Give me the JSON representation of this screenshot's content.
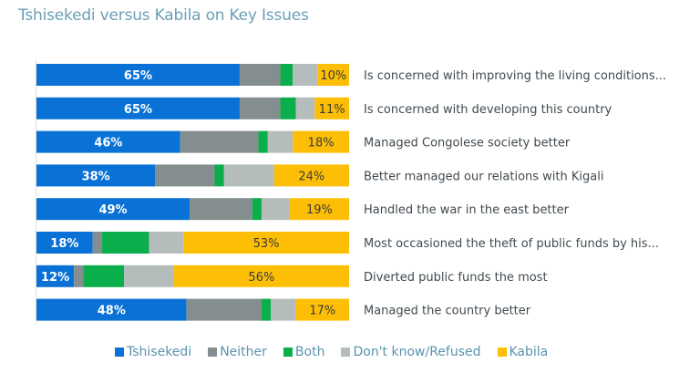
{
  "chart_data": {
    "type": "bar",
    "orientation": "horizontal",
    "stacked": true,
    "title": "Tshisekedi versus Kabila on Key Issues",
    "xlabel": "",
    "ylabel": "",
    "xlim": [
      0,
      100
    ],
    "grid": false,
    "legend_position": "bottom",
    "categories": [
      "Is concerned with improving the living conditions...",
      "Is concerned with developing this country",
      "Managed Congolese society better",
      "Better managed our relations with Kigali",
      "Handled the war in the east better",
      "Most occasioned the theft of public funds by his...",
      "Diverted public funds the most",
      "Managed the country better"
    ],
    "series": [
      {
        "name": "Tshisekedi",
        "color": "#0a72d6",
        "values": [
          65,
          65,
          46,
          38,
          49,
          18,
          12,
          48
        ],
        "labeled": true
      },
      {
        "name": "Neither",
        "color": "#848e8e",
        "values": [
          13,
          13,
          25,
          19,
          20,
          3,
          3,
          24
        ],
        "labeled": false
      },
      {
        "name": "Both",
        "color": "#0aaf4b",
        "values": [
          4,
          5,
          3,
          3,
          3,
          15,
          13,
          3
        ],
        "labeled": false
      },
      {
        "name": "Don't know/Refused",
        "color": "#b5bcbc",
        "values": [
          8,
          6,
          8,
          16,
          9,
          11,
          16,
          8
        ],
        "labeled": false
      },
      {
        "name": "Kabila",
        "color": "#fdbf06",
        "values": [
          10,
          11,
          18,
          24,
          19,
          53,
          56,
          17
        ],
        "labeled": true
      }
    ]
  }
}
